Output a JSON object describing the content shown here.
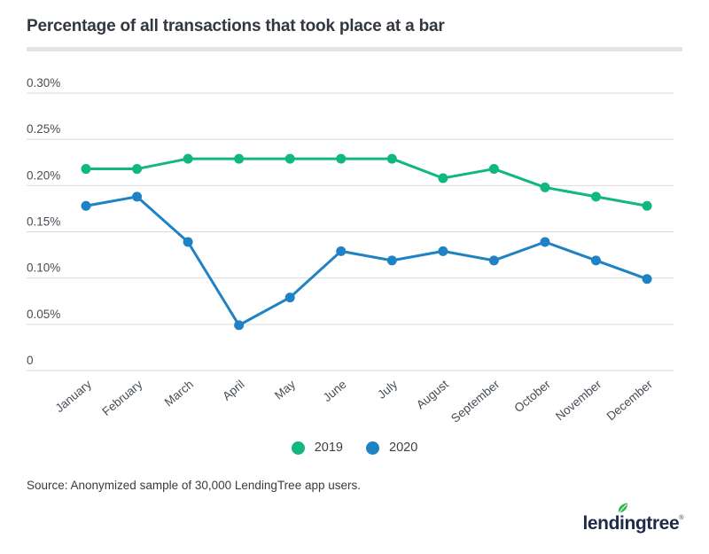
{
  "header": {
    "title": "Percentage of all transactions that took place at a bar"
  },
  "chart_data": {
    "type": "line",
    "title": "Percentage of all transactions that took place at a bar",
    "categories": [
      "January",
      "February",
      "March",
      "April",
      "May",
      "June",
      "July",
      "August",
      "September",
      "October",
      "November",
      "December"
    ],
    "series": [
      {
        "name": "2019",
        "color": "#10b77f",
        "values": [
          0.218,
          0.218,
          0.229,
          0.229,
          0.229,
          0.229,
          0.229,
          0.208,
          0.218,
          0.198,
          0.188,
          0.178
        ]
      },
      {
        "name": "2020",
        "color": "#1f82c4",
        "values": [
          0.178,
          0.188,
          0.139,
          0.049,
          0.079,
          0.129,
          0.119,
          0.129,
          0.119,
          0.139,
          0.119,
          0.099
        ]
      }
    ],
    "y_ticks": [
      {
        "value": 0.3,
        "label": "0.30%"
      },
      {
        "value": 0.25,
        "label": "0.25%"
      },
      {
        "value": 0.2,
        "label": "0.20%"
      },
      {
        "value": 0.15,
        "label": "0.15%"
      },
      {
        "value": 0.1,
        "label": "0.10%"
      },
      {
        "value": 0.05,
        "label": "0.05%"
      },
      {
        "value": 0,
        "label": "0"
      }
    ],
    "xlabel": "",
    "ylabel": "",
    "ylim": [
      0,
      0.3
    ],
    "grid": true,
    "gridline_color": "#dbdbdb",
    "legend_position": "bottom-center"
  },
  "footer": {
    "source": "Source: Anonymized sample of 30,000 LendingTree app users.",
    "logo": {
      "pre": "lend",
      "dotted": "i",
      "post": "ngtree",
      "reg_mark": "®",
      "leaf_color": "#2eb453",
      "wordmark_color": "#1d2b49"
    }
  }
}
